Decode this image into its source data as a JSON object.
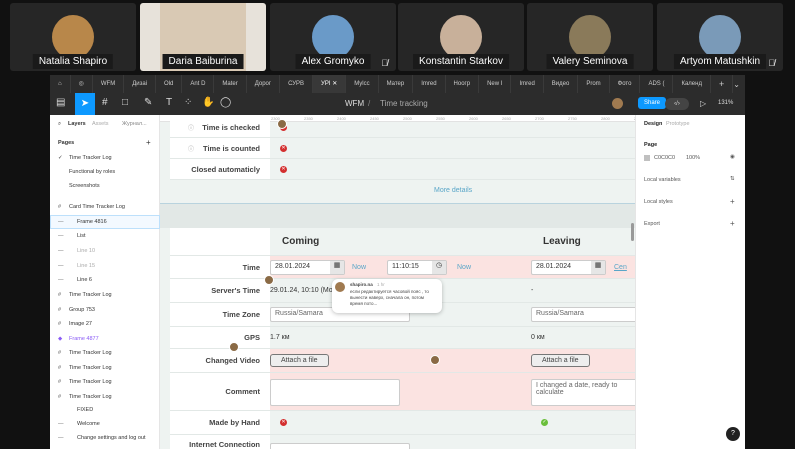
{
  "participants": [
    {
      "name": "Natalia Shapiro",
      "muted": false,
      "color": "#b8874a"
    },
    {
      "name": "Daria Baiburina",
      "muted": false,
      "color": "#d9c9b4"
    },
    {
      "name": "Alex Gromyko",
      "muted": true,
      "color": "#6a9ac8"
    },
    {
      "name": "Konstantin Starkov",
      "muted": false,
      "color": "#c8b09a"
    },
    {
      "name": "Valery Seminova",
      "muted": false,
      "color": "#8a7a5a"
    },
    {
      "name": "Artyom Matushkin",
      "muted": true,
      "color": "#7a9ab8"
    }
  ],
  "tabs": [
    "WFM",
    "Дизаі",
    "Old",
    "Ant D",
    "Mater",
    "Дорог",
    "СУРВ",
    "УРІ",
    "Mylcc",
    "Матер",
    "Imred",
    "Ноогр",
    "New I",
    "Imred",
    "Видео",
    "Prom",
    "Фото",
    "ADS (",
    "Календ"
  ],
  "active_tab": "УРІ",
  "toolbar": {
    "project": "WFM",
    "separator": "/",
    "page": "Time tracking",
    "share": "Share",
    "zoom": "131%"
  },
  "left_panel": {
    "tabs": [
      "Layers",
      "Assets",
      "Журнал..."
    ],
    "pages_title": "Pages",
    "pages": [
      "Time Tracker Log",
      "Functional by roles",
      "Screenshots"
    ],
    "layers": [
      "Card Time Tracker Log",
      "Frame 4816",
      "List",
      "Line 10",
      "Line 15",
      "Line 6",
      "Time Tracker Log",
      "Group 753",
      "Image 27",
      "Frame 4877",
      "Time Tracker Log",
      "Time Tracker Log",
      "Time Tracker Log",
      "Time Tracker Log",
      "FIXED",
      "Welcome",
      "Change settings and log out"
    ]
  },
  "right_panel": {
    "tabs": [
      "Design",
      "Prototype"
    ],
    "page_label": "Page",
    "page_color": "C0C0C0",
    "opacity": "100%",
    "sections": [
      "Local variables",
      "Local styles",
      "Export"
    ]
  },
  "ruler": [
    "2150",
    "2200",
    "2250",
    "2300",
    "2350",
    "2400",
    "2450",
    "2500",
    "2550",
    "2600",
    "2650",
    "2700",
    "2750",
    "2800",
    "2850"
  ],
  "card": {
    "rows_top": [
      "Time is checked",
      "Time is counted",
      "Closed automaticly"
    ],
    "more_details": "More details",
    "col_coming": "Coming",
    "col_leaving": "Leaving",
    "time_label": "Time",
    "coming_date": "28.01.2024",
    "now": "Now",
    "coming_time": "11:10:15",
    "leaving_date": "28.01.2024",
    "leaving_extra": "Cen",
    "server_label": "Server's Time",
    "server_coming": "29.01.24, 10:10 (Mo",
    "server_leaving": "-",
    "tz_label": "Time Zone",
    "tz_coming": "Russia/Samara",
    "tz_leaving": "Russia/Samara",
    "gps_label": "GPS",
    "gps_coming": "1.7 км",
    "gps_leaving": "0 км",
    "video_label": "Changed Video",
    "attach": "Attach a file",
    "comment_label": "Comment",
    "comment_leaving": "I changed a date, ready to calculate",
    "hand_label": "Made by Hand",
    "internet_label": "Internet Connection"
  },
  "comment_popup": {
    "author": "shapiro.na",
    "time": "1 hr",
    "text": "если редактируется часовой пояс , то вынести наверх, сначала он, потом время пото..."
  },
  "colors": {
    "accent": "#0d99ff",
    "error": "#d32f2f",
    "success": "#6abf3b",
    "pink": "#fbe3e1"
  }
}
